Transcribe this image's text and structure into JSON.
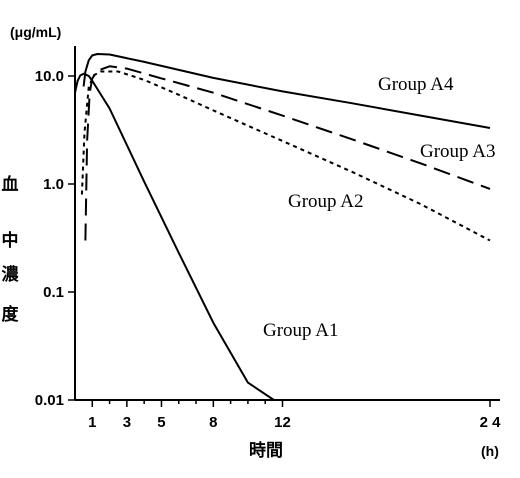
{
  "chart_data": {
    "type": "line",
    "title": "",
    "ylabel": "血中濃度",
    "xlabel": "時間",
    "y_unit": "(μg/mL)",
    "x_unit": "(h)",
    "y_scale": "log",
    "ylim": [
      0.01,
      20
    ],
    "xlim": [
      0,
      24.5
    ],
    "y_ticks": [
      {
        "value": 0.01,
        "label": "0.01"
      },
      {
        "value": 0.1,
        "label": "0.1"
      },
      {
        "value": 1,
        "label": "1.0"
      },
      {
        "value": 10,
        "label": "10.0"
      }
    ],
    "x_ticks": [
      {
        "value": 1,
        "label": "1"
      },
      {
        "value": 3,
        "label": "3"
      },
      {
        "value": 5,
        "label": "5"
      },
      {
        "value": 8,
        "label": "8"
      },
      {
        "value": 12,
        "label": "12"
      },
      {
        "value": 24,
        "label": "2 4"
      }
    ],
    "x_minor_ticks": [
      2,
      4,
      6,
      7,
      9,
      10,
      11
    ],
    "series": [
      {
        "name": "Group A1",
        "line_style": "solid",
        "x": [
          0.0,
          0.15,
          0.3,
          0.5,
          0.8,
          1.0,
          2,
          4,
          6,
          8,
          10,
          11.5
        ],
        "y": [
          7.0,
          9.0,
          10.1,
          10.5,
          10.0,
          9.0,
          5.0,
          1.05,
          0.23,
          0.052,
          0.0145,
          0.01
        ]
      },
      {
        "name": "Group A2",
        "line_style": "dotted",
        "x": [
          0.4,
          0.55,
          0.8,
          1.1,
          1.5,
          2.5,
          4,
          6,
          8,
          12,
          16,
          20,
          24
        ],
        "y": [
          0.8,
          3.0,
          8.0,
          10.2,
          11.0,
          11.0,
          9.2,
          6.7,
          4.8,
          2.5,
          1.3,
          0.65,
          0.3
        ]
      },
      {
        "name": "Group A3",
        "line_style": "dashed",
        "x": [
          0.6,
          0.7,
          0.85,
          1.0,
          1.3,
          2.0,
          3,
          5,
          8,
          12,
          16,
          20,
          24
        ],
        "y": [
          0.3,
          2.5,
          7.0,
          9.5,
          11.2,
          12.3,
          11.7,
          9.5,
          7.0,
          4.3,
          2.6,
          1.55,
          0.9
        ]
      },
      {
        "name": "Group A4",
        "line_style": "solid",
        "x": [
          0.5,
          0.6,
          0.8,
          1.0,
          1.3,
          2,
          4,
          8,
          12,
          16,
          20,
          24
        ],
        "y": [
          8.0,
          11.0,
          14.0,
          15.5,
          16.0,
          15.8,
          13.5,
          9.6,
          7.2,
          5.6,
          4.3,
          3.3
        ]
      }
    ],
    "annotations": [
      {
        "text": "Group A4",
        "series": "Group A4"
      },
      {
        "text": "Group A3",
        "series": "Group A3"
      },
      {
        "text": "Group A2",
        "series": "Group A2"
      },
      {
        "text": "Group A1",
        "series": "Group A1"
      }
    ],
    "grid": false,
    "legend": "none"
  }
}
